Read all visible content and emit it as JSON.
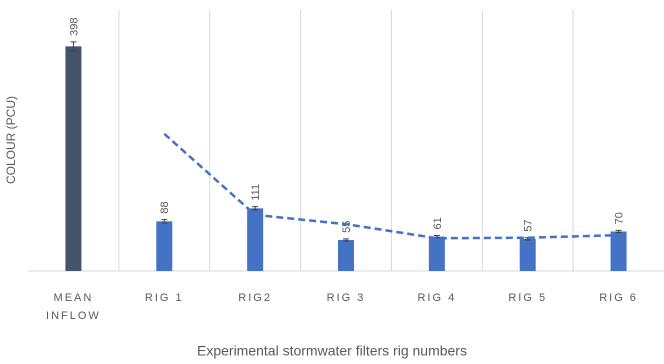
{
  "chart_data": {
    "type": "bar",
    "y_label": "COLOUR (PCU)",
    "x_label": "Experimental stormwater filters rig numbers",
    "categories": [
      "MEAN INFLOW",
      "RIG 1",
      "RIG2",
      "RIG 3",
      "RIG 4",
      "RIG 5",
      "RIG 6"
    ],
    "values": [
      398,
      88,
      111,
      55,
      61,
      57,
      70
    ],
    "errors": [
      8,
      3,
      3,
      2,
      2,
      2,
      2
    ],
    "colors": [
      "#44546a",
      "#4472c4",
      "#4472c4",
      "#4472c4",
      "#4472c4",
      "#4472c4",
      "#4472c4"
    ],
    "trendline": {
      "values": [
        null,
        243,
        99.5,
        83,
        58,
        59,
        63.5
      ],
      "color": "#4472c4",
      "dashed": true
    },
    "ylim": [
      0,
      450
    ],
    "grid": true
  }
}
